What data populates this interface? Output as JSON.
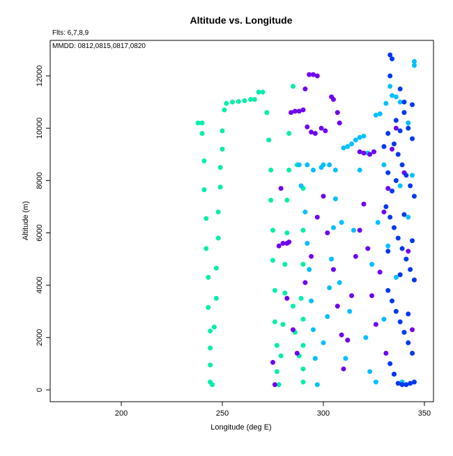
{
  "chart_data": {
    "type": "scatter",
    "title": "Altitude vs. Longitude",
    "subtitle": "Flts: 6,7,8,9",
    "annotation": "MMDD: 0812,0815,0817,0820",
    "x_label": "Longitude (deg E)",
    "y_label": "Altitude (m)",
    "xlim": [
      164.8,
      354.5
    ],
    "ylim": [
      -452,
      13357
    ],
    "xticks": [
      200,
      250,
      300,
      350
    ],
    "yticks": [
      0,
      2000,
      4000,
      6000,
      8000,
      10000,
      12000
    ],
    "series": [
      {
        "color": "#00eeaa",
        "x": [
          238,
          240,
          240,
          241,
          241,
          242,
          242,
          243,
          243,
          244,
          244,
          244,
          244,
          245,
          246,
          247,
          247,
          248,
          248,
          249,
          249,
          250,
          250,
          251,
          252,
          255,
          258,
          261,
          264,
          266,
          268,
          270,
          272,
          273,
          274,
          274,
          275,
          275,
          276,
          276,
          277,
          277,
          278,
          279,
          280,
          281,
          281,
          282,
          282,
          283,
          283,
          285,
          287,
          290,
          290,
          290,
          289,
          290,
          290,
          290,
          290,
          288,
          286,
          285
        ],
        "values": [
          10200,
          10200,
          9800,
          8750,
          7650,
          6550,
          5400,
          4300,
          3150,
          2250,
          1600,
          950,
          300,
          200,
          2400,
          3500,
          4650,
          5800,
          6800,
          7750,
          8500,
          9200,
          9900,
          10700,
          10950,
          11000,
          11020,
          11050,
          11100,
          11100,
          11380,
          11380,
          10600,
          9550,
          8400,
          7250,
          6100,
          4950,
          3800,
          2600,
          1700,
          700,
          200,
          1300,
          2500,
          3700,
          4800,
          6000,
          7250,
          8400,
          9800,
          11600,
          8600,
          7700,
          6100,
          4800,
          3500,
          2700,
          1700,
          800,
          300,
          1300,
          2200,
          3200
        ]
      },
      {
        "color": "#00bfff",
        "x": [
          288,
          292,
          295,
          299,
          300,
          303,
          306,
          310,
          312,
          314,
          316,
          318,
          320,
          322,
          325,
          326,
          328,
          331,
          333,
          334,
          336,
          338,
          342,
          345,
          345,
          289,
          291,
          292,
          293,
          294,
          295,
          296,
          297,
          300,
          302,
          303,
          304,
          305,
          306,
          308,
          309,
          311,
          313,
          315,
          318,
          321,
          323,
          324,
          327,
          330,
          332,
          336,
          338,
          340,
          342,
          344,
          330,
          326,
          339
        ],
        "values": [
          8600,
          8600,
          8400,
          8500,
          8600,
          8600,
          8400,
          9250,
          9300,
          9400,
          9550,
          9650,
          9700,
          9050,
          9100,
          10500,
          10550,
          10950,
          11600,
          11250,
          11200,
          11000,
          10200,
          12400,
          12550,
          7800,
          6800,
          5600,
          4600,
          3400,
          2300,
          1200,
          200,
          1800,
          2800,
          3900,
          5000,
          6200,
          7300,
          4100,
          6400,
          1200,
          3000,
          6100,
          8400,
          2000,
          700,
          4800,
          6400,
          2700,
          5500,
          4300,
          7800,
          2200,
          6600,
          8200,
          8600,
          300,
          300
        ]
      },
      {
        "color": "#7000f0",
        "x": [
          275,
          276,
          278,
          280,
          282,
          283,
          284,
          286,
          288,
          290,
          292,
          294,
          296,
          299,
          301,
          304,
          305,
          307,
          308,
          318,
          320,
          323,
          325,
          293,
          295,
          297,
          291,
          279,
          282,
          285,
          287,
          291,
          294,
          297,
          300,
          302,
          305,
          307,
          309,
          310,
          312,
          314,
          316,
          318,
          320,
          322,
          324,
          326,
          328,
          330,
          332,
          334,
          336,
          340,
          342,
          344,
          331,
          335
        ],
        "values": [
          1050,
          200,
          5500,
          5600,
          5600,
          5650,
          10600,
          10650,
          10650,
          10700,
          10050,
          9850,
          9800,
          10000,
          9900,
          11200,
          11100,
          10600,
          10200,
          9100,
          9050,
          9000,
          9100,
          12050,
          12050,
          12000,
          11500,
          7700,
          3500,
          2300,
          1400,
          4100,
          5100,
          6600,
          7400,
          6000,
          4600,
          3200,
          2100,
          800,
          1900,
          3600,
          5100,
          6100,
          7100,
          5400,
          3600,
          2500,
          4500,
          6800,
          7700,
          9200,
          10000,
          8300,
          5300,
          2300,
          1400,
          600
        ]
      },
      {
        "color": "#0038f0",
        "x": [
          333,
          334,
          333,
          338,
          340,
          342,
          344,
          332,
          335,
          337,
          339,
          341,
          343,
          345,
          331,
          333,
          335,
          337,
          339,
          341,
          343,
          345,
          332,
          334,
          336,
          338,
          340,
          342,
          344,
          333,
          335,
          337,
          339,
          341,
          343,
          345,
          336,
          340,
          344,
          334,
          338,
          342,
          332,
          340,
          344,
          336,
          330,
          332,
          338
        ],
        "values": [
          12800,
          12650,
          12000,
          11500,
          11000,
          10000,
          9600,
          9800,
          9400,
          9000,
          8600,
          8200,
          7800,
          7400,
          7000,
          6600,
          6200,
          5800,
          5400,
          5000,
          4600,
          4200,
          3800,
          3400,
          3000,
          2600,
          2200,
          1800,
          1400,
          1000,
          600,
          250,
          200,
          200,
          250,
          300,
          10300,
          10600,
          10900,
          7600,
          4400,
          2900,
          5300,
          6700,
          5700,
          8000,
          9300,
          8300,
          9900
        ]
      }
    ]
  }
}
